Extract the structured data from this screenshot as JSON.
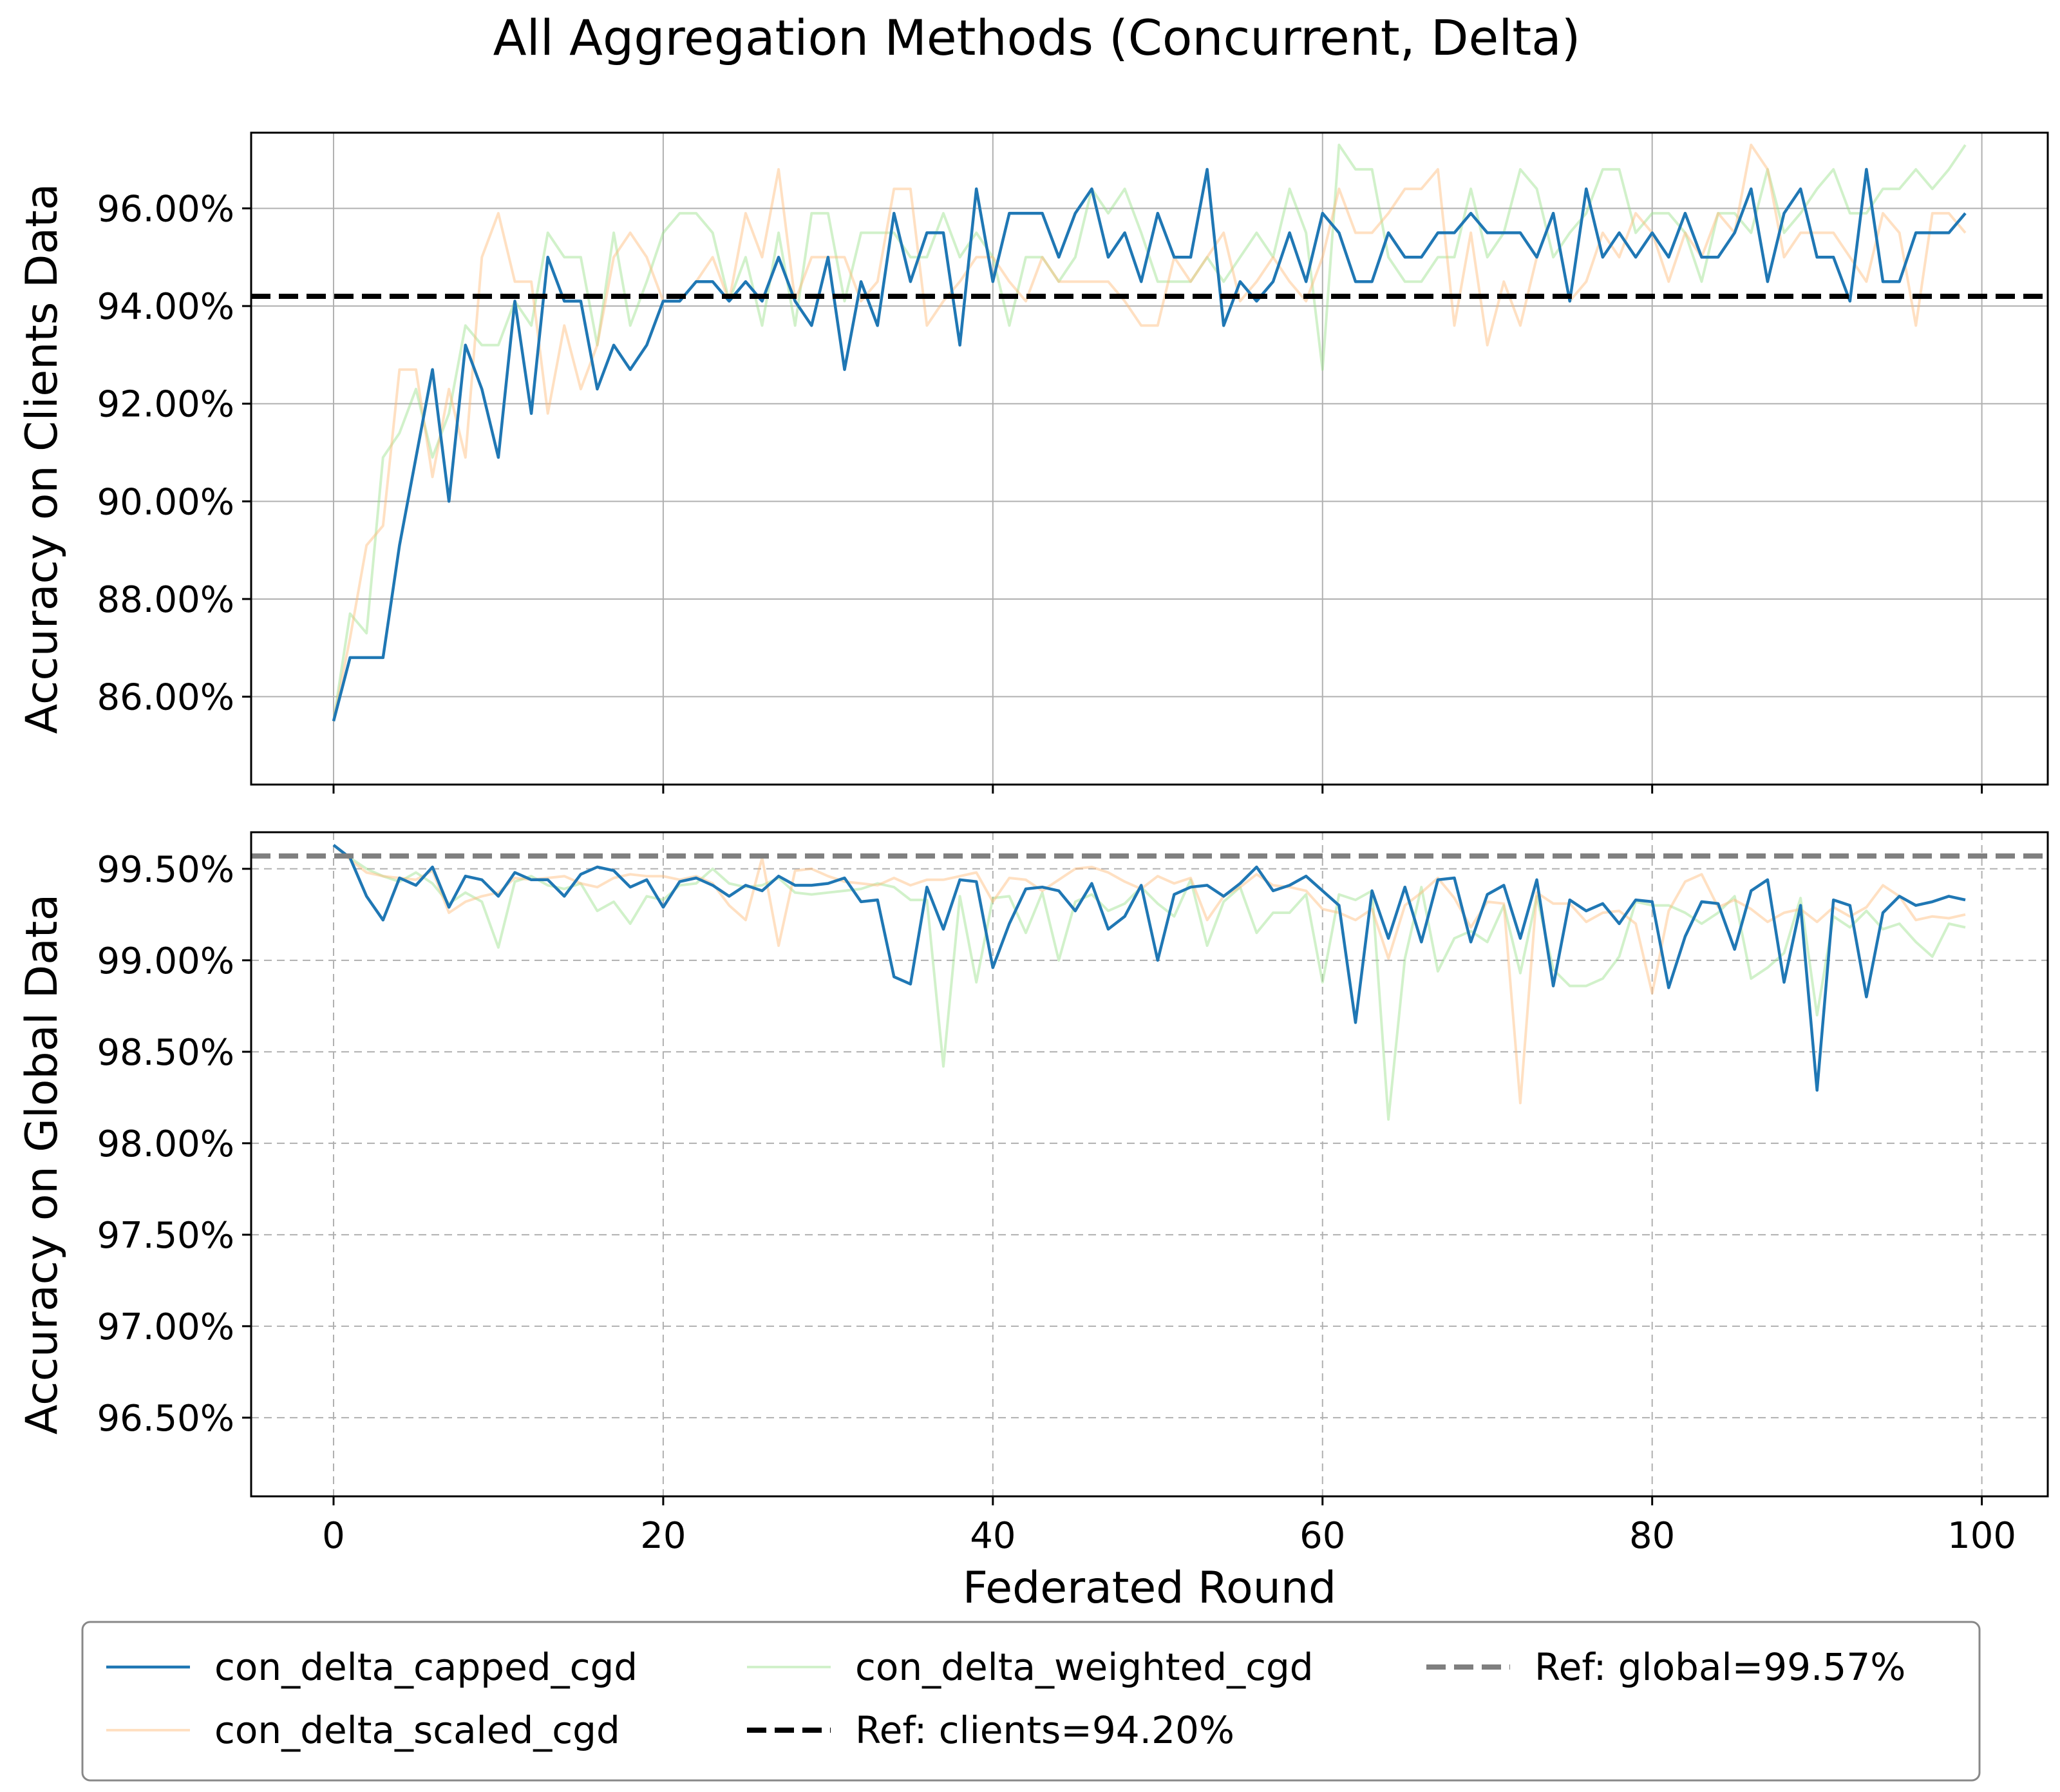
{
  "figure": {
    "title": "All Aggregation Methods (Concurrent, Delta)",
    "xlabel": "Federated Round"
  },
  "colors": {
    "capped": "#1f77b4",
    "scaled": "#ffbb78",
    "weighted": "#98df8a",
    "ref_clients": "#000000",
    "ref_global": "#7f7f7f"
  },
  "legend": {
    "placement": "below figure",
    "items": [
      {
        "key": "capped",
        "label": "con_delta_capped_cgd"
      },
      {
        "key": "scaled",
        "label": "con_delta_scaled_cgd"
      },
      {
        "key": "weighted",
        "label": "con_delta_weighted_cgd"
      },
      {
        "key": "ref_clients",
        "label": "Ref: clients=94.20%"
      },
      {
        "key": "ref_global",
        "label": "Ref: global=99.57%"
      }
    ]
  },
  "chart_data": [
    {
      "type": "line",
      "ylabel": "Accuracy on Clients Data",
      "xlim": [
        -5,
        104
      ],
      "ylim": [
        84.2,
        97.55
      ],
      "grid": "solid",
      "x_ticks": [
        "0",
        "20",
        "40",
        "60",
        "80",
        "100"
      ],
      "x_tick_values": [
        0,
        20,
        40,
        60,
        80,
        100
      ],
      "x_tick_labels_shown": false,
      "y_ticks": [
        "86.00%",
        "88.00%",
        "90.00%",
        "92.00%",
        "94.00%",
        "96.00%"
      ],
      "y_tick_values": [
        86,
        88,
        90,
        92,
        94,
        96
      ],
      "reference": {
        "key": "ref_clients",
        "value": 94.2,
        "style": "dashed"
      },
      "series": [
        {
          "key": "capped",
          "name": "con_delta_capped_cgd",
          "values": [
            85.5,
            86.8,
            86.8,
            86.8,
            89.1,
            90.9,
            92.7,
            90.0,
            93.2,
            92.3,
            90.9,
            94.1,
            91.8,
            95.0,
            94.1,
            94.1,
            92.3,
            93.2,
            92.7,
            93.2,
            94.1,
            94.1,
            94.5,
            94.5,
            94.1,
            94.5,
            94.1,
            95.0,
            94.1,
            93.6,
            95.0,
            92.7,
            94.5,
            93.6,
            95.9,
            94.5,
            95.5,
            95.5,
            93.2,
            96.4,
            94.5,
            95.9,
            95.9,
            95.9,
            95.0,
            95.9,
            96.4,
            95.0,
            95.5,
            94.5,
            95.9,
            95.0,
            95.0,
            96.8,
            93.6,
            94.5,
            94.1,
            94.5,
            95.5,
            94.5,
            95.9,
            95.5,
            94.5,
            94.5,
            95.5,
            95.0,
            95.0,
            95.5,
            95.5,
            95.9,
            95.5,
            95.5,
            95.5,
            95.0,
            95.9,
            94.1,
            96.4,
            95.0,
            95.5,
            95.0,
            95.5,
            95.0,
            95.9,
            95.0,
            95.0,
            95.5,
            96.4,
            94.5,
            95.9,
            96.4,
            95.0,
            95.0,
            94.1,
            96.8,
            94.5,
            94.5,
            95.5,
            95.5,
            95.5,
            95.9
          ]
        },
        {
          "key": "scaled",
          "name": "con_delta_scaled_cgd",
          "values": [
            85.5,
            87.2,
            89.1,
            89.5,
            92.7,
            92.7,
            90.5,
            92.3,
            90.9,
            95.0,
            95.9,
            94.5,
            94.5,
            91.8,
            93.6,
            92.3,
            93.2,
            95.0,
            95.5,
            95.0,
            94.1,
            94.1,
            94.5,
            95.0,
            94.1,
            95.9,
            95.0,
            96.8,
            94.1,
            95.0,
            95.0,
            95.0,
            94.1,
            94.5,
            96.4,
            96.4,
            93.6,
            94.1,
            94.5,
            95.0,
            95.0,
            94.5,
            94.1,
            95.0,
            94.5,
            94.5,
            94.5,
            94.5,
            94.1,
            93.6,
            93.6,
            95.0,
            94.5,
            95.0,
            95.5,
            94.1,
            94.5,
            95.0,
            94.5,
            94.1,
            95.0,
            96.4,
            95.5,
            95.5,
            95.9,
            96.4,
            96.4,
            96.8,
            93.6,
            95.5,
            93.2,
            94.5,
            93.6,
            95.0,
            95.9,
            94.1,
            94.5,
            95.5,
            95.0,
            95.9,
            95.5,
            94.5,
            95.5,
            95.0,
            95.9,
            95.5,
            97.3,
            96.8,
            95.0,
            95.5,
            95.5,
            95.5,
            95.0,
            94.5,
            95.9,
            95.5,
            93.6,
            95.9,
            95.9,
            95.5
          ]
        },
        {
          "key": "weighted",
          "name": "con_delta_weighted_cgd",
          "values": [
            85.5,
            87.7,
            87.3,
            90.9,
            91.4,
            92.3,
            90.9,
            91.8,
            93.6,
            93.2,
            93.2,
            94.1,
            93.6,
            95.5,
            95.0,
            95.0,
            93.2,
            95.5,
            93.6,
            94.5,
            95.5,
            95.9,
            95.9,
            95.5,
            94.1,
            95.0,
            93.6,
            95.5,
            93.6,
            95.9,
            95.9,
            94.1,
            95.5,
            95.5,
            95.5,
            95.0,
            95.0,
            95.9,
            95.0,
            95.5,
            95.0,
            93.6,
            95.0,
            95.0,
            94.5,
            95.0,
            96.4,
            95.9,
            96.4,
            95.5,
            94.5,
            94.5,
            94.5,
            95.0,
            94.5,
            95.0,
            95.5,
            95.0,
            96.4,
            95.5,
            92.7,
            97.3,
            96.8,
            96.8,
            95.0,
            94.5,
            94.5,
            95.0,
            95.0,
            96.4,
            95.0,
            95.5,
            96.8,
            96.4,
            95.0,
            95.5,
            95.9,
            96.8,
            96.8,
            95.5,
            95.9,
            95.9,
            95.5,
            94.5,
            95.9,
            95.9,
            95.5,
            96.8,
            95.5,
            95.9,
            96.4,
            96.8,
            95.9,
            95.9,
            96.4,
            96.4,
            96.8,
            96.4,
            96.8,
            97.3
          ]
        }
      ]
    },
    {
      "type": "line",
      "ylabel": "Accuracy on Global Data",
      "xlim": [
        -5,
        104
      ],
      "ylim": [
        96.07,
        99.7
      ],
      "grid": "dashed",
      "x_ticks": [
        "0",
        "20",
        "40",
        "60",
        "80",
        "100"
      ],
      "x_tick_values": [
        0,
        20,
        40,
        60,
        80,
        100
      ],
      "x_tick_labels_shown": true,
      "y_ticks": [
        "96.50%",
        "97.00%",
        "97.50%",
        "98.00%",
        "98.50%",
        "99.00%",
        "99.50%"
      ],
      "y_tick_values": [
        96.5,
        97.0,
        97.5,
        98.0,
        98.5,
        99.0,
        99.5
      ],
      "reference": {
        "key": "ref_global",
        "value": 99.57,
        "style": "dashed"
      },
      "series": [
        {
          "key": "capped",
          "name": "con_delta_capped_cgd",
          "values": [
            99.63,
            99.56,
            99.35,
            99.22,
            99.45,
            99.41,
            99.51,
            99.29,
            99.46,
            99.44,
            99.35,
            99.48,
            99.44,
            99.44,
            99.35,
            99.47,
            99.51,
            99.49,
            99.4,
            99.44,
            99.29,
            99.43,
            99.45,
            99.41,
            99.35,
            99.41,
            99.38,
            99.46,
            99.41,
            99.41,
            99.42,
            99.45,
            99.32,
            99.33,
            98.91,
            98.87,
            99.4,
            99.17,
            99.44,
            99.43,
            98.96,
            99.2,
            99.39,
            99.4,
            99.38,
            99.27,
            99.42,
            99.17,
            99.24,
            99.41,
            99.0,
            99.36,
            99.4,
            99.41,
            99.35,
            99.42,
            99.51,
            99.38,
            99.41,
            99.46,
            99.38,
            99.3,
            98.66,
            99.38,
            99.12,
            99.4,
            99.1,
            99.44,
            99.45,
            99.1,
            99.36,
            99.41,
            99.12,
            99.44,
            98.86,
            99.33,
            99.27,
            99.31,
            99.2,
            99.33,
            99.32,
            98.85,
            99.13,
            99.32,
            99.31,
            99.06,
            99.38,
            99.44,
            98.88,
            99.3,
            98.29,
            99.33,
            99.3,
            98.8,
            99.26,
            99.35,
            99.3,
            99.32,
            99.35,
            99.33
          ]
        },
        {
          "key": "scaled",
          "name": "con_delta_scaled_cgd",
          "values": [
            99.63,
            99.55,
            99.48,
            99.46,
            99.45,
            99.44,
            99.49,
            99.26,
            99.32,
            99.35,
            99.37,
            99.45,
            99.44,
            99.45,
            99.46,
            99.42,
            99.4,
            99.45,
            99.47,
            99.46,
            99.46,
            99.44,
            99.46,
            99.42,
            99.3,
            99.22,
            99.56,
            99.08,
            99.49,
            99.5,
            99.46,
            99.43,
            99.42,
            99.41,
            99.45,
            99.41,
            99.44,
            99.44,
            99.46,
            99.48,
            99.32,
            99.45,
            99.44,
            99.38,
            99.44,
            99.5,
            99.51,
            99.48,
            99.43,
            99.39,
            99.46,
            99.42,
            99.45,
            99.22,
            99.35,
            99.4,
            99.47,
            99.41,
            99.4,
            99.38,
            99.28,
            99.26,
            99.22,
            99.28,
            99.01,
            99.3,
            99.37,
            99.45,
            99.34,
            99.18,
            99.32,
            99.31,
            98.22,
            99.37,
            99.31,
            99.31,
            99.21,
            99.26,
            99.27,
            99.2,
            98.82,
            99.27,
            99.43,
            99.47,
            99.29,
            99.33,
            99.28,
            99.21,
            99.26,
            99.28,
            99.21,
            99.29,
            99.24,
            99.29,
            99.41,
            99.35,
            99.22,
            99.24,
            99.23,
            99.25
          ]
        },
        {
          "key": "weighted",
          "name": "con_delta_weighted_cgd",
          "values": [
            99.63,
            99.56,
            99.5,
            99.46,
            99.43,
            99.48,
            99.42,
            99.31,
            99.37,
            99.32,
            99.07,
            99.43,
            99.46,
            99.41,
            99.39,
            99.42,
            99.27,
            99.32,
            99.2,
            99.35,
            99.33,
            99.41,
            99.42,
            99.5,
            99.42,
            99.4,
            99.41,
            99.45,
            99.37,
            99.36,
            99.37,
            99.38,
            99.39,
            99.42,
            99.4,
            99.33,
            99.33,
            98.42,
            99.35,
            98.88,
            99.34,
            99.35,
            99.15,
            99.37,
            99.0,
            99.32,
            99.36,
            99.27,
            99.31,
            99.4,
            99.31,
            99.24,
            99.44,
            99.08,
            99.32,
            99.4,
            99.15,
            99.26,
            99.26,
            99.36,
            98.88,
            99.36,
            99.33,
            99.38,
            98.13,
            99.01,
            99.4,
            98.94,
            99.12,
            99.16,
            99.1,
            99.3,
            98.93,
            99.35,
            98.95,
            98.86,
            98.86,
            98.9,
            99.02,
            99.32,
            99.3,
            99.3,
            99.26,
            99.2,
            99.26,
            99.35,
            98.9,
            98.96,
            99.04,
            99.34,
            98.7,
            99.24,
            99.18,
            99.27,
            99.17,
            99.2,
            99.1,
            99.02,
            99.2,
            99.18
          ]
        }
      ]
    }
  ]
}
